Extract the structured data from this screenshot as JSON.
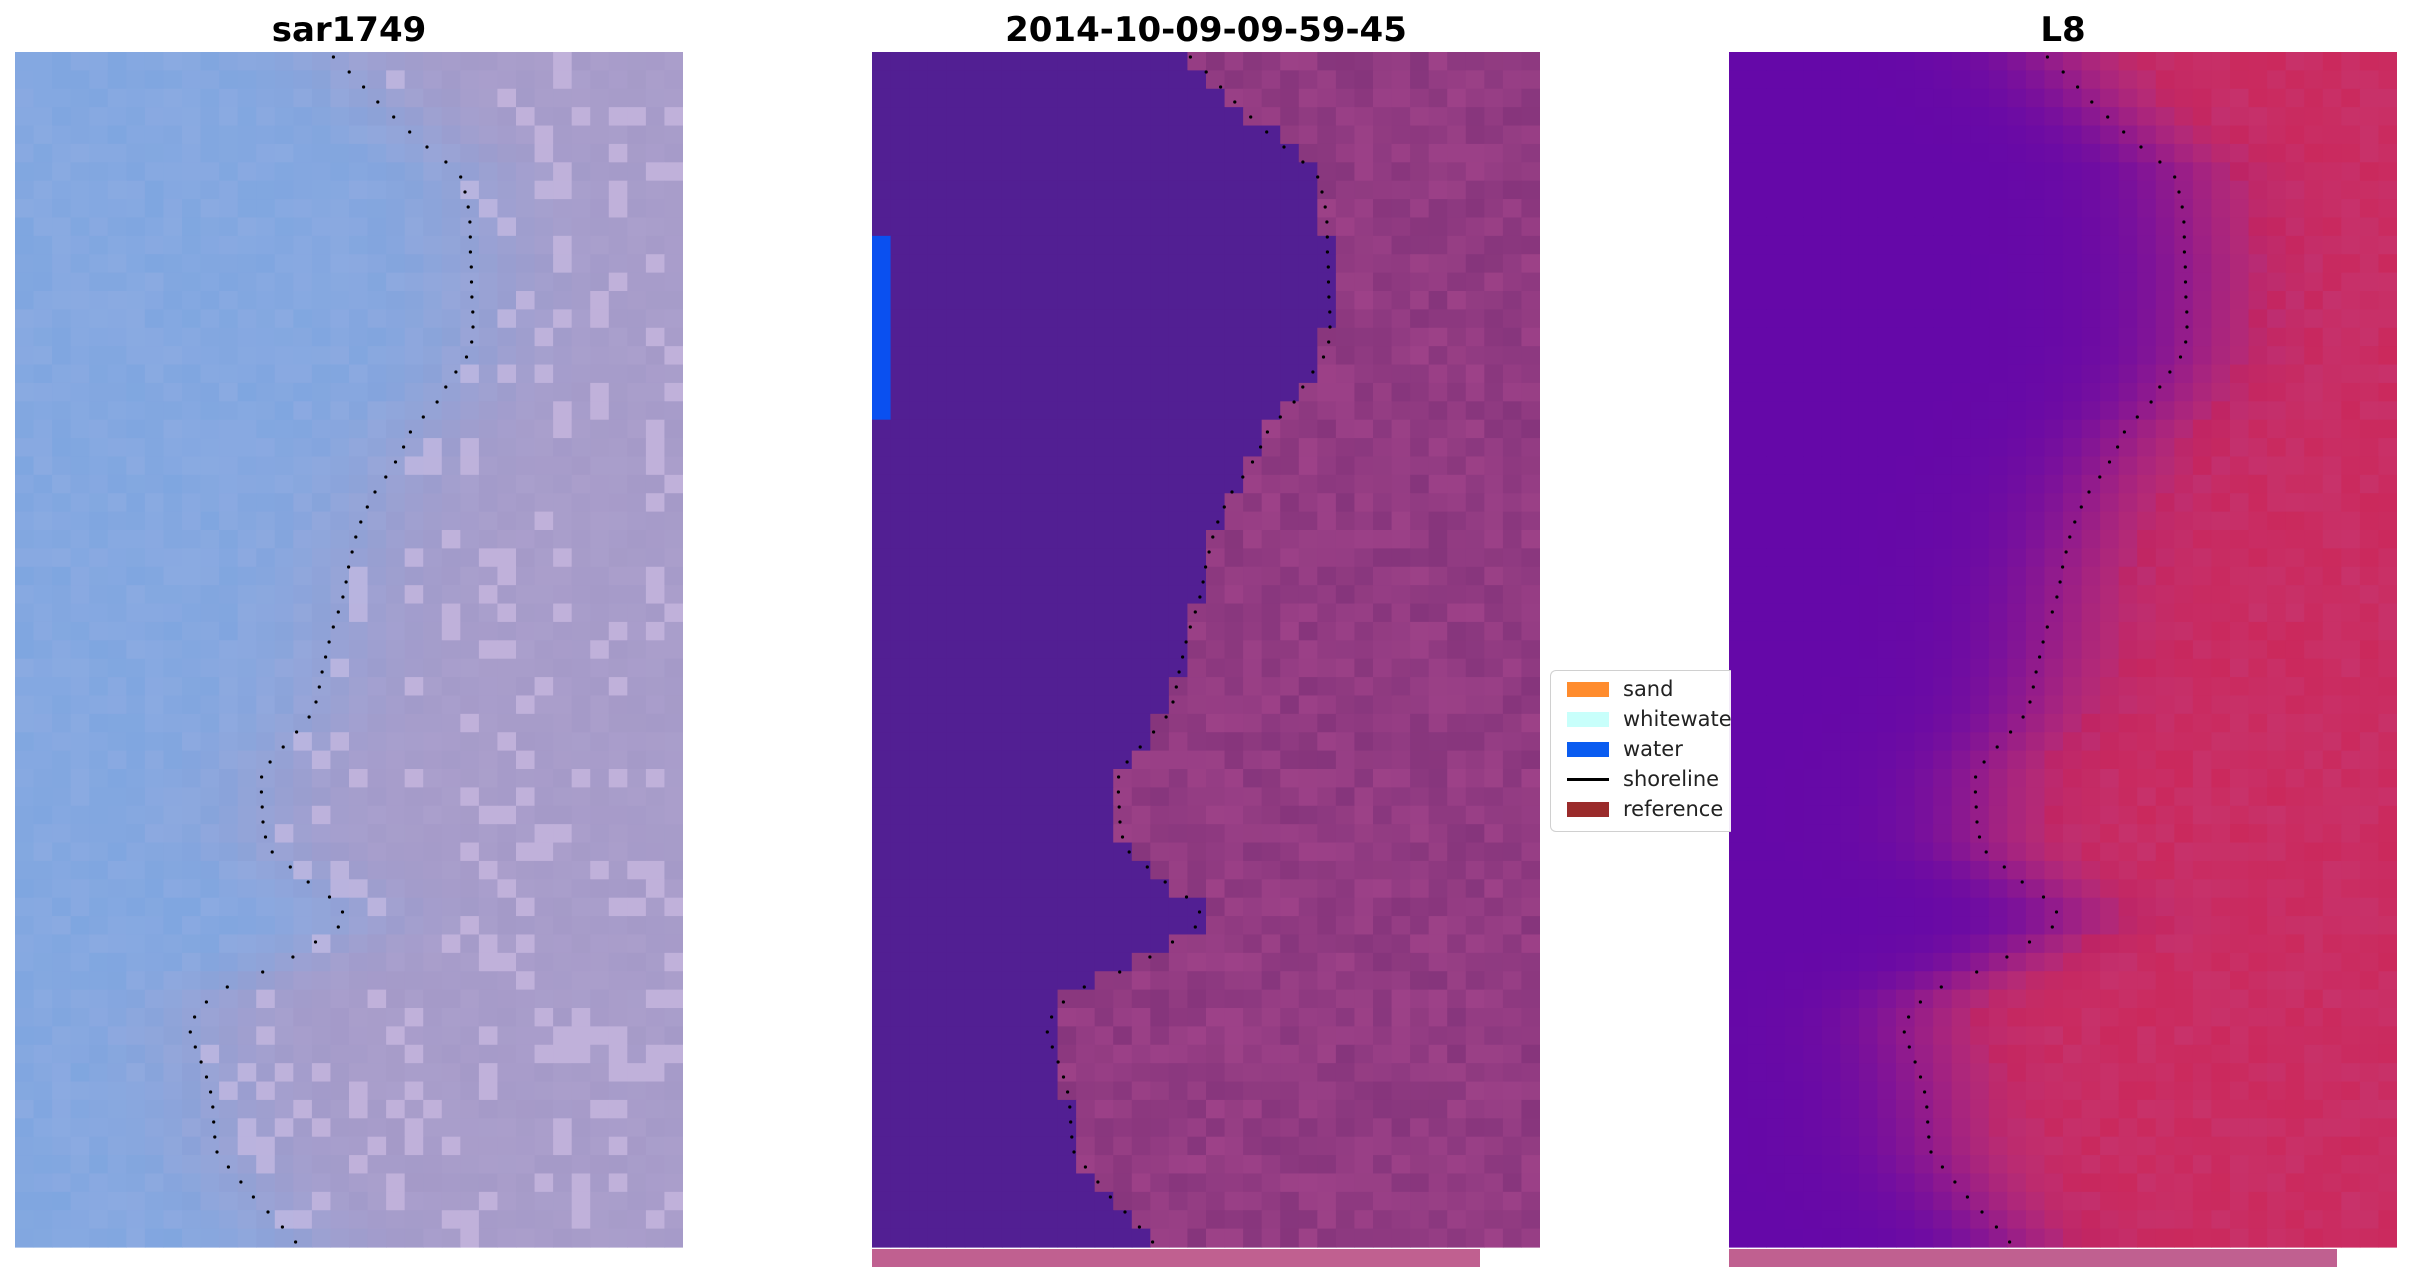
{
  "panels": [
    {
      "title": "sar1749"
    },
    {
      "title": "2014-10-09-09-59-45"
    },
    {
      "title": "L8"
    }
  ],
  "legend": {
    "items": [
      {
        "label": "sand",
        "color": "#ff8c2e",
        "kind": "patch"
      },
      {
        "label": "whitewater",
        "color": "#c8fffb",
        "kind": "patch"
      },
      {
        "label": "water",
        "color": "#0a5cf0",
        "kind": "patch"
      },
      {
        "label": "shoreline",
        "color": "#000000",
        "kind": "line"
      },
      {
        "label": "reference shoreline",
        "color": "#9a2b2b",
        "kind": "patch"
      }
    ]
  },
  "colors": {
    "rgb_water": "#7fa6e0",
    "rgb_land": "#a59ac8",
    "classified_water": "#521f93",
    "classified_land": "#86357c",
    "index_water": "#6508a8",
    "index_land": "#c8326a",
    "bottom_bar": "#c06090"
  }
}
